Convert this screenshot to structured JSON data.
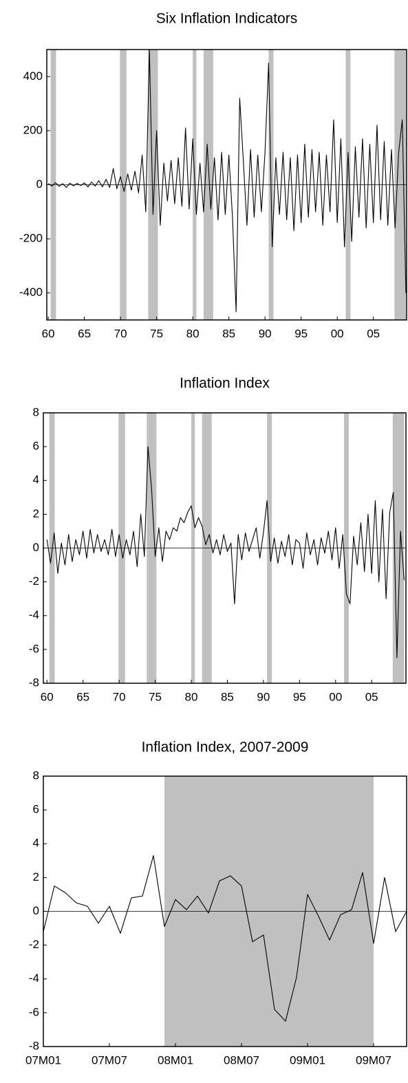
{
  "chart_data": [
    {
      "type": "line",
      "title": "Six Inflation Indicators",
      "x": [
        1960,
        1960.5,
        1961,
        1961.5,
        1962,
        1962.5,
        1963,
        1963.5,
        1964,
        1964.5,
        1965,
        1965.5,
        1966,
        1966.5,
        1967,
        1967.5,
        1968,
        1968.5,
        1969,
        1969.5,
        1970,
        1970.5,
        1971,
        1971.5,
        1972,
        1972.5,
        1973,
        1973.5,
        1974,
        1974.5,
        1975,
        1975.5,
        1976,
        1976.5,
        1977,
        1977.5,
        1978,
        1978.5,
        1979,
        1979.5,
        1980,
        1980.5,
        1981,
        1981.5,
        1982,
        1982.5,
        1983,
        1983.5,
        1984,
        1984.5,
        1985,
        1985.5,
        1986,
        1986.5,
        1987,
        1987.5,
        1988,
        1988.5,
        1989,
        1989.5,
        1990,
        1990.5,
        1991,
        1991.5,
        1992,
        1992.5,
        1993,
        1993.5,
        1994,
        1994.5,
        1995,
        1995.5,
        1996,
        1996.5,
        1997,
        1997.5,
        1998,
        1998.5,
        1999,
        1999.5,
        2000,
        2000.5,
        2001,
        2001.5,
        2002,
        2002.5,
        2003,
        2003.5,
        2004,
        2004.5,
        2005,
        2005.5,
        2006,
        2006.5,
        2007,
        2007.5,
        2008,
        2008.5,
        2009,
        2009.5
      ],
      "series": [
        {
          "color": "#000000",
          "values": [
            5,
            -5,
            8,
            -6,
            4,
            -10,
            6,
            -4,
            5,
            -3,
            7,
            -8,
            10,
            -5,
            15,
            -8,
            20,
            -10,
            60,
            -15,
            30,
            -25,
            40,
            -20,
            50,
            -30,
            110,
            -100,
            500,
            -110,
            200,
            -150,
            80,
            -60,
            90,
            -70,
            100,
            -80,
            210,
            -90,
            170,
            -110,
            80,
            -100,
            150,
            -90,
            100,
            -130,
            120,
            -110,
            110,
            -120,
            -470,
            320,
            90,
            -150,
            130,
            -120,
            110,
            -100,
            120,
            450,
            -230,
            100,
            -110,
            120,
            -130,
            100,
            -170,
            110,
            -140,
            150,
            -120,
            130,
            -100,
            120,
            -150,
            110,
            -100,
            240,
            -140,
            170,
            -230,
            120,
            -210,
            140,
            -120,
            170,
            -160,
            150,
            -140,
            220,
            -130,
            160,
            -150,
            130,
            -160,
            120,
            240,
            -400
          ]
        }
      ],
      "xlim": [
        1959.8,
        2009.6
      ],
      "xticks": [
        {
          "value": 1960,
          "label": "60"
        },
        {
          "value": 1965,
          "label": "65"
        },
        {
          "value": 1970,
          "label": "70"
        },
        {
          "value": 1975,
          "label": "75"
        },
        {
          "value": 1980,
          "label": "80"
        },
        {
          "value": 1985,
          "label": "85"
        },
        {
          "value": 1990,
          "label": "90"
        },
        {
          "value": 1995,
          "label": "95"
        },
        {
          "value": 2000,
          "label": "00"
        },
        {
          "value": 2005,
          "label": "05"
        }
      ],
      "ylim": [
        -500,
        500
      ],
      "yticks": [
        -400,
        -200,
        0,
        200,
        400
      ],
      "shaded_regions": [
        [
          1960.33,
          1961.08
        ],
        [
          1969.92,
          1970.83
        ],
        [
          1973.83,
          1975.17
        ],
        [
          1980.0,
          1980.5
        ],
        [
          1981.5,
          1982.83
        ],
        [
          1990.5,
          1991.17
        ],
        [
          2001.17,
          2001.83
        ],
        [
          2007.92,
          2009.5
        ]
      ],
      "shade_color": "#c0c0c0",
      "zero_line": true
    },
    {
      "type": "line",
      "title": "Inflation Index",
      "x": [
        1960,
        1960.5,
        1961,
        1961.5,
        1962,
        1962.5,
        1963,
        1963.5,
        1964,
        1964.5,
        1965,
        1965.5,
        1966,
        1966.5,
        1967,
        1967.5,
        1968,
        1968.5,
        1969,
        1969.5,
        1970,
        1970.5,
        1971,
        1971.5,
        1972,
        1972.5,
        1973,
        1973.5,
        1974,
        1974.5,
        1975,
        1975.5,
        1976,
        1976.5,
        1977,
        1977.5,
        1978,
        1978.5,
        1979,
        1979.5,
        1980,
        1980.5,
        1981,
        1981.5,
        1982,
        1982.5,
        1983,
        1983.5,
        1984,
        1984.5,
        1985,
        1985.5,
        1986,
        1986.5,
        1987,
        1987.5,
        1988,
        1988.5,
        1989,
        1989.5,
        1990,
        1990.5,
        1991,
        1991.5,
        1992,
        1992.5,
        1993,
        1993.5,
        1994,
        1994.5,
        1995,
        1995.5,
        1996,
        1996.5,
        1997,
        1997.5,
        1998,
        1998.5,
        1999,
        1999.5,
        2000,
        2000.5,
        2001,
        2001.5,
        2002,
        2002.5,
        2003,
        2003.5,
        2004,
        2004.5,
        2005,
        2005.5,
        2006,
        2006.5,
        2007,
        2007.5,
        2008,
        2008.5,
        2009,
        2009.5
      ],
      "series": [
        {
          "color": "#000000",
          "values": [
            0.5,
            -0.9,
            0.9,
            -1.5,
            0.3,
            -1.0,
            0.8,
            -0.8,
            0.5,
            -0.4,
            1.0,
            -0.6,
            1.1,
            -0.3,
            0.8,
            -0.2,
            0.5,
            -0.4,
            1.1,
            -0.5,
            0.8,
            -0.6,
            0.5,
            -0.4,
            1.0,
            -1.1,
            2,
            -0.5,
            6,
            3.5,
            -0.5,
            1.2,
            -0.8,
            1.0,
            0.5,
            1.2,
            1.0,
            1.8,
            1.5,
            2.1,
            2.5,
            1.2,
            1.8,
            1.3,
            0.2,
            0.8,
            -0.3,
            0.5,
            -0.4,
            0.8,
            -0.2,
            0.3,
            -3.3,
            0.8,
            -0.7,
            0.9,
            -0.2,
            0.5,
            1.2,
            -0.6,
            0.9,
            2.8,
            -0.8,
            0.6,
            -0.9,
            0.4,
            -0.5,
            0.8,
            -1.0,
            0.5,
            0.3,
            -1.2,
            0.9,
            -0.4,
            0.5,
            -1.0,
            0.6,
            -0.3,
            1.0,
            -0.7,
            1.2,
            -1.2,
            0.8,
            -2.7,
            -3.3,
            0.7,
            -1.0,
            1.5,
            -1.4,
            2.0,
            -1.5,
            2.8,
            -2.0,
            2.3,
            -3.0,
            2.1,
            3.3,
            -6.5,
            1.0,
            -1.9
          ]
        }
      ],
      "xlim": [
        1959.5,
        2009.75
      ],
      "xticks": [
        {
          "value": 1960,
          "label": "60"
        },
        {
          "value": 1965,
          "label": "65"
        },
        {
          "value": 1970,
          "label": "70"
        },
        {
          "value": 1975,
          "label": "75"
        },
        {
          "value": 1980,
          "label": "80"
        },
        {
          "value": 1985,
          "label": "85"
        },
        {
          "value": 1990,
          "label": "90"
        },
        {
          "value": 1995,
          "label": "95"
        },
        {
          "value": 2000,
          "label": "00"
        },
        {
          "value": 2005,
          "label": "05"
        }
      ],
      "ylim": [
        -8,
        8
      ],
      "yticks": [
        -8,
        -6,
        -4,
        -2,
        0,
        2,
        4,
        6,
        8
      ],
      "shaded_regions": [
        [
          1960.33,
          1961.08
        ],
        [
          1969.92,
          1970.83
        ],
        [
          1973.83,
          1975.17
        ],
        [
          1980.0,
          1980.5
        ],
        [
          1981.5,
          1982.83
        ],
        [
          1990.5,
          1991.17
        ],
        [
          2001.17,
          2001.83
        ],
        [
          2007.92,
          2009.5
        ]
      ],
      "shade_color": "#c0c0c0",
      "zero_line": true
    },
    {
      "type": "line",
      "title": "Inflation Index, 2007-2009",
      "categories": [
        "07M01",
        null,
        null,
        null,
        null,
        null,
        "07M07",
        null,
        null,
        null,
        null,
        null,
        "08M01",
        null,
        null,
        null,
        null,
        null,
        "08M07",
        null,
        null,
        null,
        null,
        null,
        "09M01",
        null,
        null,
        null,
        null,
        null,
        "09M07",
        null,
        null,
        null
      ],
      "series": [
        {
          "color": "#000000",
          "values": [
            -1.2,
            1.5,
            1.1,
            0.5,
            0.3,
            -0.7,
            0.3,
            -1.3,
            0.8,
            0.9,
            3.3,
            -0.9,
            0.7,
            0.1,
            0.9,
            -0.1,
            1.8,
            2.1,
            1.5,
            -1.8,
            -1.4,
            -5.8,
            -6.5,
            -3.9,
            1.0,
            -0.3,
            -1.7,
            -0.2,
            0.1,
            2.3,
            -1.9,
            2.0,
            -1.2,
            0.0
          ]
        }
      ],
      "ylim": [
        -8,
        8
      ],
      "yticks": [
        -8,
        -6,
        -4,
        -2,
        0,
        2,
        4,
        6,
        8
      ],
      "shaded_regions": [
        [
          11,
          30
        ]
      ],
      "shade_color": "#c0c0c0",
      "zero_line": true
    }
  ]
}
